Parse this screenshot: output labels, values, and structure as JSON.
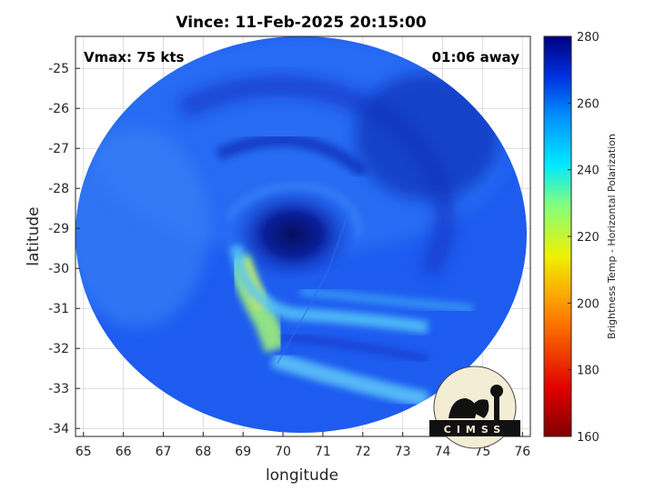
{
  "figure": {
    "title": "Vince: 11-Feb-2025 20:15:00",
    "vmax_label": "Vmax: 75 kts",
    "time_away_label": "01:06 away",
    "xlabel": "longitude",
    "ylabel": "latitude",
    "colorbar_label": "Brightness Temp - Horizontal Polarization",
    "logo_text": "CIMSS"
  },
  "map_data": {
    "type": "heatmap",
    "title": "Vince: 11-Feb-2025 20:15:00",
    "xlabel": "longitude",
    "ylabel": "latitude",
    "xlim": [
      64.8,
      76.2
    ],
    "ylim": [
      -34.2,
      -24.2
    ],
    "x_ticks": [
      65,
      66,
      67,
      68,
      69,
      70,
      71,
      72,
      73,
      74,
      75,
      76
    ],
    "y_ticks": [
      -25,
      -26,
      -27,
      -28,
      -29,
      -30,
      -31,
      -32,
      -33,
      -34
    ],
    "grid": true,
    "storm_center": {
      "lon": 70.2,
      "lat": -29.1
    },
    "colorbar": {
      "range": [
        160,
        280
      ],
      "ticks": [
        160,
        180,
        200,
        220,
        240,
        260,
        280
      ],
      "label": "Brightness Temp - Horizontal Polarization"
    }
  },
  "colors": {
    "swath_base": "#1e5cf0",
    "eye": "#06157a",
    "cold_band": "#d8e040",
    "background": "#ffffff"
  }
}
